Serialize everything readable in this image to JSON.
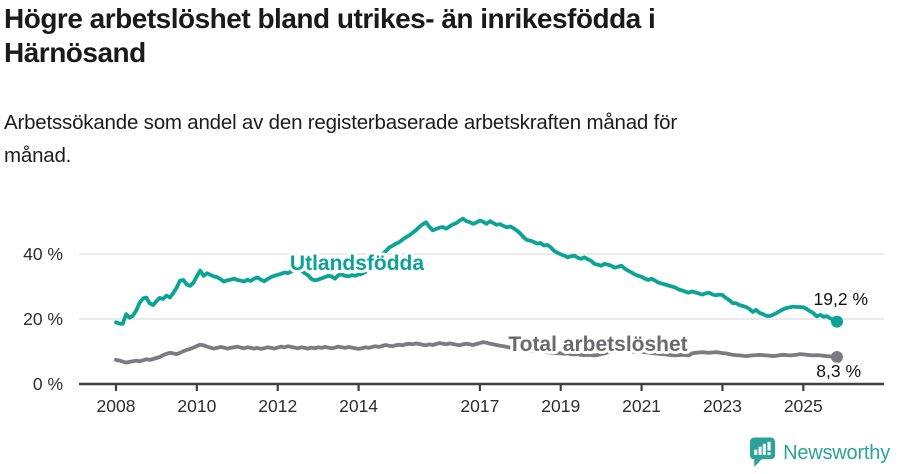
{
  "header": {
    "title_lines": [
      "Högre arbetslöshet bland utrikes- än inrikesfödda i",
      "Härnösand"
    ],
    "subtitle_lines": [
      "Arbetssökande som andel av den registerbaserade arbetskraften månad för",
      "månad."
    ]
  },
  "chart_data": {
    "type": "line",
    "x_start": "2008-01",
    "x_end": "2025-11",
    "x_unit": "month",
    "x_tick_years": [
      2008,
      2010,
      2012,
      2014,
      2017,
      2019,
      2021,
      2023,
      2025
    ],
    "y_ticks": [
      {
        "value": 0,
        "label": "0 %"
      },
      {
        "value": 20,
        "label": "20 %"
      },
      {
        "value": 40,
        "label": "40 %"
      }
    ],
    "ylim": [
      0,
      55
    ],
    "grid": "horizontal",
    "colors": {
      "grid": "#dcdcdc",
      "axis": "#3f3f3f",
      "accent_teal": "#0aa396",
      "gray": "#7b7b81"
    },
    "series": [
      {
        "name": "Utlandsfödda",
        "color": "#0aa396",
        "label_color": "#0aa396",
        "end_label": "19,2 %",
        "end_value": 19.2,
        "values": [
          19.0,
          18.6,
          18.5,
          21.5,
          20.4,
          21.0,
          22.6,
          25.0,
          26.3,
          26.6,
          24.8,
          24.3,
          25.5,
          26.5,
          26.2,
          27.2,
          26.6,
          28.0,
          29.6,
          31.8,
          32.0,
          30.6,
          30.2,
          31.2,
          33.2,
          34.9,
          33.3,
          34.1,
          33.6,
          33.1,
          32.9,
          32.3,
          31.5,
          31.9,
          32.1,
          32.4,
          32.0,
          31.8,
          31.5,
          32.1,
          31.7,
          32.4,
          32.8,
          32.1,
          31.6,
          32.3,
          32.9,
          33.3,
          33.6,
          33.9,
          34.3,
          34.1,
          34.6,
          35.3,
          35.5,
          34.9,
          34.1,
          33.5,
          32.3,
          31.9,
          32.1,
          32.5,
          32.9,
          33.3,
          33.1,
          32.4,
          33.5,
          33.7,
          33.3,
          33.1,
          33.5,
          33.3,
          33.7,
          33.9,
          34.5,
          35.5,
          36.7,
          37.8,
          38.9,
          39.9,
          40.8,
          41.9,
          42.5,
          43.1,
          43.6,
          44.4,
          45.1,
          45.7,
          46.5,
          47.3,
          48.3,
          49.1,
          49.8,
          48.4,
          47.3,
          47.7,
          48.1,
          48.3,
          47.8,
          48.5,
          49.1,
          49.5,
          50.3,
          50.9,
          50.1,
          49.8,
          49.3,
          49.7,
          50.3,
          49.9,
          49.3,
          50.1,
          49.5,
          49.0,
          49.2,
          48.6,
          48.2,
          48.5,
          47.9,
          47.2,
          46.3,
          45.1,
          44.3,
          44.1,
          43.7,
          43.2,
          43.4,
          42.6,
          42.8,
          42.1,
          41.0,
          40.4,
          39.9,
          39.5,
          39.0,
          39.3,
          39.5,
          38.9,
          38.5,
          39.0,
          38.4,
          37.9,
          37.0,
          36.7,
          36.4,
          37.0,
          36.7,
          36.4,
          35.8,
          36.1,
          36.4,
          35.5,
          34.9,
          34.3,
          33.7,
          33.3,
          33.0,
          32.4,
          32.0,
          32.4,
          31.8,
          31.2,
          30.9,
          30.6,
          30.3,
          30.0,
          29.7,
          29.1,
          28.8,
          28.4,
          28.1,
          28.5,
          28.2,
          27.8,
          27.5,
          27.9,
          28.1,
          27.6,
          27.3,
          27.5,
          27.4,
          26.5,
          25.8,
          24.9,
          24.9,
          24.3,
          24.0,
          23.7,
          23.1,
          22.2,
          22.8,
          21.9,
          21.5,
          21.0,
          20.9,
          21.3,
          21.8,
          22.4,
          23.0,
          23.4,
          23.6,
          23.8,
          23.7,
          23.7,
          23.6,
          23.1,
          22.4,
          21.8,
          20.8,
          21.3,
          20.7,
          20.9,
          20.2,
          19.7,
          19.2
        ]
      },
      {
        "name": "Total arbetslöshet",
        "color": "#7b7b81",
        "label_color": "#69696f",
        "end_label": "8,3 %",
        "end_value": 8.3,
        "values": [
          7.4,
          7.2,
          6.9,
          6.6,
          6.8,
          7.0,
          7.2,
          7.0,
          7.3,
          7.6,
          7.4,
          7.7,
          8.0,
          8.3,
          8.9,
          9.3,
          9.6,
          9.4,
          9.2,
          9.6,
          10.1,
          10.5,
          10.8,
          11.2,
          11.7,
          12.1,
          11.9,
          11.5,
          11.2,
          10.9,
          11.1,
          11.4,
          11.2,
          10.9,
          11.1,
          11.3,
          11.5,
          11.2,
          11.0,
          11.3,
          11.1,
          10.9,
          11.1,
          10.8,
          11.0,
          11.3,
          11.1,
          10.9,
          11.2,
          11.5,
          11.3,
          11.6,
          11.4,
          11.2,
          11.0,
          11.3,
          11.1,
          10.9,
          11.2,
          11.0,
          11.3,
          11.1,
          11.4,
          11.2,
          11.0,
          11.2,
          11.5,
          11.3,
          11.1,
          11.4,
          11.2,
          11.0,
          10.8,
          11.0,
          11.3,
          11.1,
          11.4,
          11.6,
          11.4,
          11.7,
          12.0,
          11.8,
          11.6,
          11.9,
          12.1,
          11.9,
          12.2,
          12.4,
          12.2,
          12.5,
          12.3,
          12.1,
          11.9,
          12.2,
          12.0,
          12.3,
          12.6,
          12.4,
          12.2,
          12.5,
          12.3,
          12.1,
          11.9,
          12.2,
          12.4,
          12.2,
          12.0,
          12.3,
          12.6,
          12.9,
          12.7,
          12.4,
          12.2,
          12.0,
          11.8,
          11.6,
          11.4,
          11.2,
          11.0,
          10.8,
          10.6,
          10.5,
          10.4,
          10.3,
          10.2,
          10.1,
          10.0,
          9.9,
          9.8,
          9.7,
          9.6,
          9.5,
          9.4,
          9.3,
          9.4,
          9.2,
          9.1,
          9.2,
          9.0,
          8.9,
          9.0,
          8.9,
          8.8,
          8.9,
          9.2,
          9.4,
          9.8,
          10.4,
          10.6,
          10.8,
          10.7,
          10.5,
          10.3,
          10.1,
          9.9,
          9.8,
          9.9,
          9.8,
          9.7,
          9.5,
          9.4,
          9.3,
          9.2,
          9.1,
          9.0,
          8.9,
          8.8,
          8.9,
          9.0,
          8.9,
          8.8,
          9.4,
          9.6,
          9.7,
          9.8,
          9.7,
          9.6,
          9.7,
          9.8,
          9.7,
          9.5,
          9.4,
          9.2,
          9.0,
          8.9,
          8.8,
          8.7,
          8.6,
          8.7,
          8.8,
          8.9,
          9.0,
          8.9,
          8.8,
          8.7,
          8.6,
          8.7,
          8.9,
          9.0,
          8.9,
          8.8,
          8.9,
          9.0,
          9.2,
          9.1,
          9.0,
          8.9,
          8.8,
          8.9,
          8.8,
          8.7,
          8.6,
          8.5,
          8.4,
          8.3
        ]
      }
    ]
  },
  "branding": {
    "logo_text": "Newsworthy",
    "logo_color": "#2ba398"
  }
}
